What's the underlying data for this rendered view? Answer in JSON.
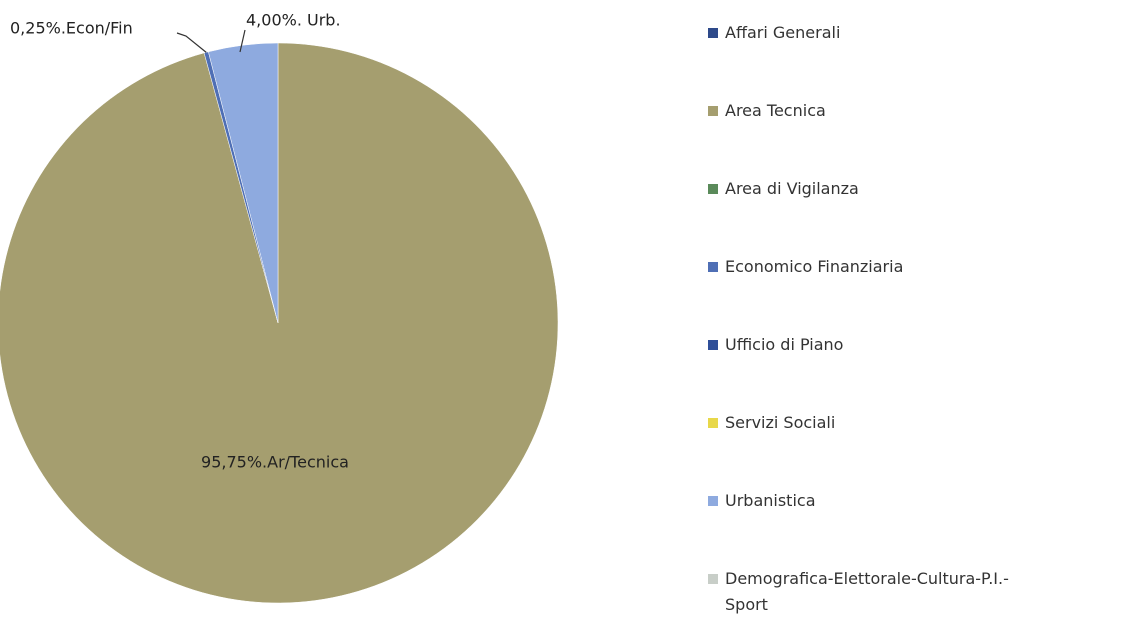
{
  "chart_data": {
    "type": "pie",
    "categories": [
      "Affari Generali",
      "Area Tecnica",
      "Area di Vigilanza",
      "Economico Finanziaria",
      "Ufficio di Piano",
      "Servizi Sociali",
      "Urbanistica",
      "Demografica-Elettorale-Cultura-P.I.-Sport"
    ],
    "values": [
      0,
      95.75,
      0,
      0.25,
      0,
      0,
      4,
      0
    ],
    "value_labels": [
      null,
      "95,75%.Ar/Tecnica",
      null,
      "0,25%.Econ/Fin",
      null,
      null,
      "4,00%. Urb.",
      null
    ],
    "colors": [
      "#2e4a8a",
      "#a59e6f",
      "#5a8a5a",
      "#4f6fb5",
      "#2f4f99",
      "#e8d84a",
      "#8eaadf",
      "#c8cec8"
    ],
    "legend": "right"
  }
}
